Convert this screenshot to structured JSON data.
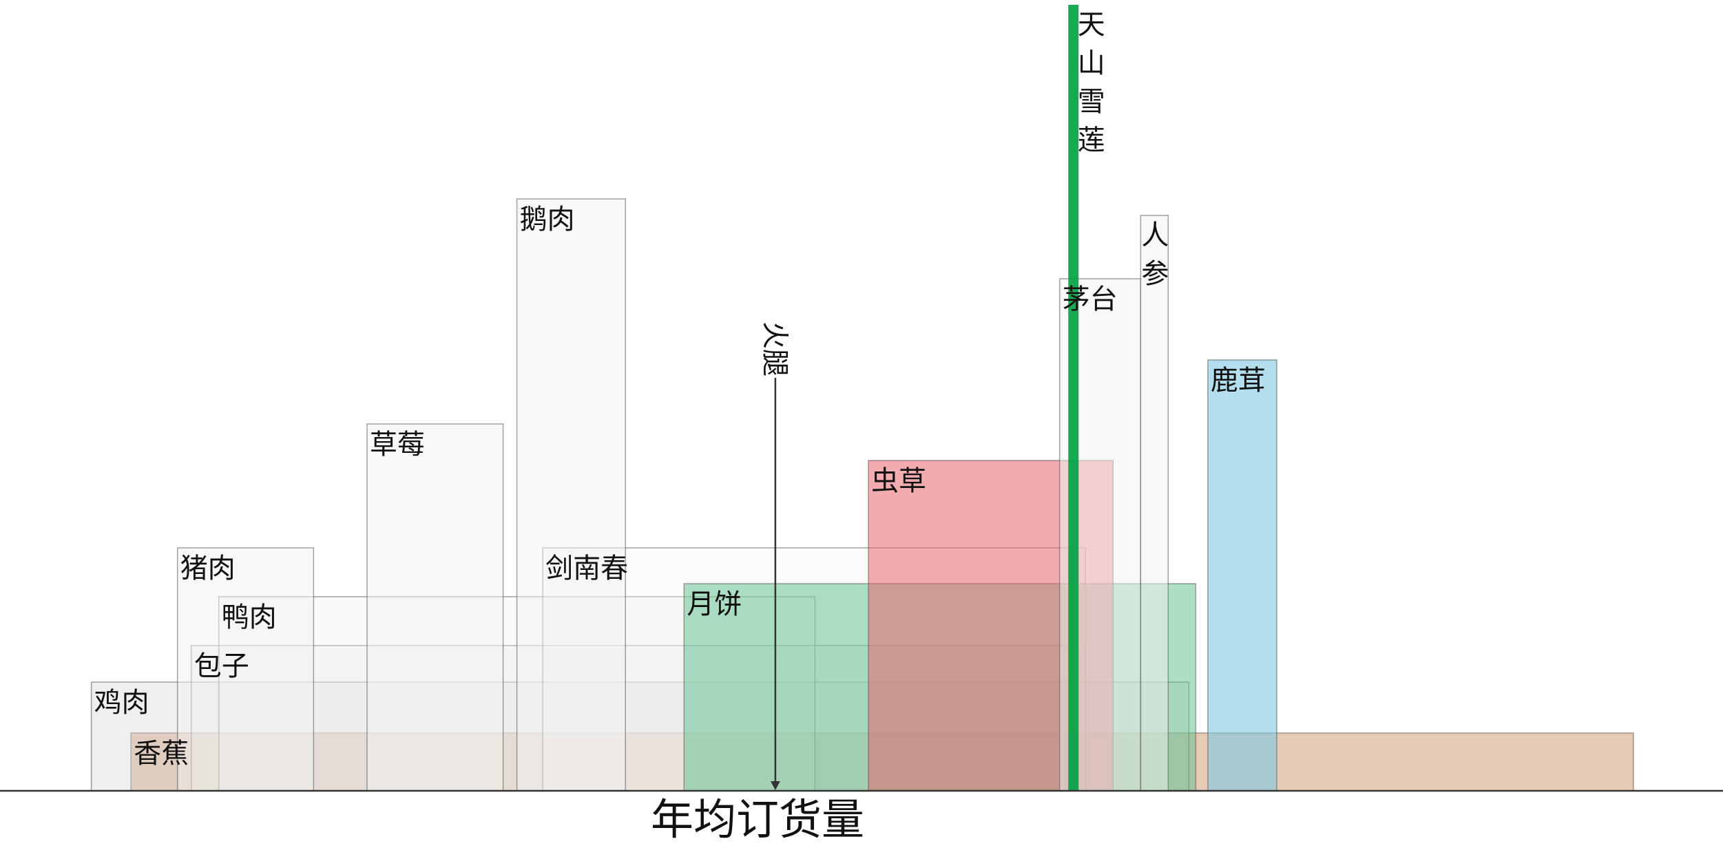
{
  "chart_data": {
    "type": "bar",
    "xlabel": "年均订货量",
    "baseline_order": [
      "香蕉",
      "鸡肉",
      "包子",
      "鸭肉",
      "剑南春",
      "月饼"
    ],
    "bars": [
      {
        "name": "香蕉",
        "x_start": 0.076,
        "x_end": 0.948,
        "height": 84,
        "color": "#D9A883",
        "opacity": 0.6,
        "label_color": "#111111"
      },
      {
        "name": "鸡肉",
        "x_start": 0.053,
        "x_end": 0.69,
        "height": 158,
        "color": "#D0D0D0",
        "opacity": 0.35,
        "label_color": "#111111"
      },
      {
        "name": "包子",
        "x_start": 0.111,
        "x_end": 0.63,
        "height": 211,
        "color": "#E6E6E6",
        "opacity": 0.3,
        "label_color": "#111111"
      },
      {
        "name": "鸭肉",
        "x_start": 0.127,
        "x_end": 0.473,
        "height": 282,
        "color": "#EEEEEE",
        "opacity": 0.3,
        "label_color": "#8a8a8a"
      },
      {
        "name": "猪肉",
        "x_start": 0.103,
        "x_end": 0.182,
        "height": 353,
        "color": "#F2F2F2",
        "opacity": 0.5,
        "label_color": "#111111"
      },
      {
        "name": "剑南春",
        "x_start": 0.315,
        "x_end": 0.63,
        "height": 353,
        "color": "#F2F2F2",
        "opacity": 0.3,
        "label_color": "#111111"
      },
      {
        "name": "草莓",
        "x_start": 0.213,
        "x_end": 0.292,
        "height": 533,
        "color": "#F2F2F2",
        "opacity": 0.5,
        "label_color": "#111111"
      },
      {
        "name": "鹅肉",
        "x_start": 0.3,
        "x_end": 0.363,
        "height": 860,
        "color": "#F2F2F2",
        "opacity": 0.5,
        "label_color": "#111111"
      },
      {
        "name": "月饼",
        "x_start": 0.397,
        "x_end": 0.694,
        "height": 301,
        "color": "#5BC08A",
        "opacity": 0.5,
        "label_color": "#111111"
      },
      {
        "name": "虫草",
        "x_start": 0.504,
        "x_end": 0.646,
        "height": 480,
        "color": "#E8676E",
        "opacity": 0.55,
        "label_color": "#111111"
      },
      {
        "name": "茅台",
        "x_start": 0.615,
        "x_end": 0.662,
        "height": 744,
        "color": "#F2F2F2",
        "opacity": 0.5,
        "label_color": "#111111"
      },
      {
        "name": "人参",
        "x_start": 0.662,
        "x_end": 0.678,
        "height": 836,
        "color": "#F2F2F2",
        "opacity": 0.5,
        "label_color": "#111111",
        "vertical_label": true
      },
      {
        "name": "鹿茸",
        "x_start": 0.701,
        "x_end": 0.741,
        "height": 626,
        "color": "#7EC8E3",
        "opacity": 0.6,
        "label_color": "#111111"
      },
      {
        "name": "天山雪莲",
        "x_start": 0.62,
        "x_end": 0.626,
        "height": 1142,
        "color": "#00A040",
        "opacity": 0.9,
        "label_color": "#111111",
        "vertical_label": true,
        "outline": false
      }
    ],
    "markers": [
      {
        "name": "火腿",
        "x": 0.45,
        "height": 600
      }
    ]
  }
}
